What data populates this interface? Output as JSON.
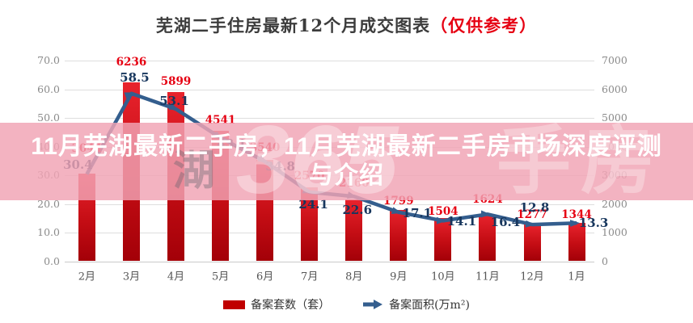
{
  "chart_title": {
    "main": "芜湖二手住房最新12个月成交图表",
    "highlight": "（仅供参考）"
  },
  "overlay": {
    "line1": "11月芜湖最新二手房，11月芜湖最新二手房市场深度评测",
    "line2": "与介绍"
  },
  "watermark": {
    "item_left": "湖",
    "item_center": "365",
    "item_right": "手房"
  },
  "legend": {
    "bars_label": "备案套数（套）",
    "line_label": "备案面积(万m²)"
  },
  "colors": {
    "bar_top": "#e8232d",
    "bar_bottom": "#a30008",
    "bar_label": "#e60012",
    "line": "#345e8e",
    "line_label": "#17365d",
    "band": "rgba(241,164,180,0.83)",
    "title_highlight": "#e60012",
    "grid": "#dedede"
  },
  "chart_data": {
    "type": "bar",
    "title": "芜湖二手住房最新12个月成交图表（仅供参考）",
    "categories": [
      "2月",
      "3月",
      "4月",
      "5月",
      "6月",
      "7月",
      "8月",
      "9月",
      "10月",
      "11月",
      "12月",
      "1月"
    ],
    "series": [
      {
        "name": "备案套数（套）",
        "kind": "bar",
        "axis": "right",
        "values": [
          3044,
          6236,
          5899,
          4541,
          3540,
          2570,
          2160,
          1799,
          1504,
          1624,
          1277,
          1344
        ]
      },
      {
        "name": "备案面积(万m²)",
        "kind": "line-arrow",
        "axis": "left",
        "values": [
          30.4,
          58.5,
          53.1,
          43.1,
          34.8,
          24.1,
          22.6,
          17.1,
          14.1,
          16.4,
          12.8,
          13.3
        ]
      }
    ],
    "left_axis": {
      "min": 0,
      "max": 70,
      "ticks": [
        "70.0",
        "60.0",
        "50.0",
        "40.0",
        "30.0",
        "20.0",
        "10.0",
        "0.0"
      ]
    },
    "right_axis": {
      "min": 0,
      "max": 7000,
      "ticks": [
        "7000",
        "6000",
        "5000",
        "4000",
        "3000",
        "2000",
        "1000",
        "0"
      ]
    },
    "grid": true,
    "legend_position": "bottom"
  }
}
